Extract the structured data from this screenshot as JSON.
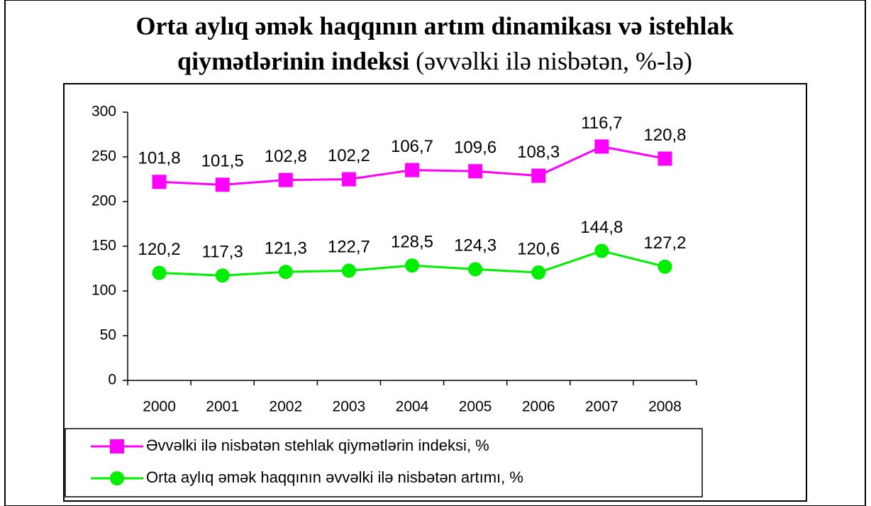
{
  "chart_data": {
    "type": "line",
    "stacked": true,
    "title": [
      "Orta aylıq əmək haqqının artım dinamikası və istehlak",
      "qiymətlərinin indeksi"
    ],
    "subtitle": "(əvvəlki ilə nisbətən, %-lə)",
    "categories": [
      "2000",
      "2001",
      "2002",
      "2003",
      "2004",
      "2005",
      "2006",
      "2007",
      "2008"
    ],
    "series": [
      {
        "name": "Orta aylıq əmək haqqının əvvəlki ilə nisbətən artımı, %",
        "color": "#00ee00",
        "marker": "circle",
        "values": [
          120.2,
          117.3,
          121.3,
          122.7,
          128.5,
          124.3,
          120.6,
          144.8,
          127.2
        ],
        "value_labels": [
          "120,2",
          "117,3",
          "121,3",
          "122,7",
          "128,5",
          "124,3",
          "120,6",
          "144,8",
          "127,2"
        ]
      },
      {
        "name": "Əvvəlki ilə nisbətən stehlak qiymətlərin indeksi, %",
        "color": "#ff00ff",
        "marker": "square",
        "values": [
          101.8,
          101.5,
          102.8,
          102.2,
          106.7,
          109.6,
          108.3,
          116.7,
          120.8
        ],
        "value_labels": [
          "101,8",
          "101,5",
          "102,8",
          "102,2",
          "106,7",
          "109,6",
          "108,3",
          "116,7",
          "120,8"
        ]
      }
    ],
    "ylim": [
      0,
      300
    ],
    "yticks": [
      0,
      50,
      100,
      150,
      200,
      250,
      300
    ],
    "grid": false
  }
}
